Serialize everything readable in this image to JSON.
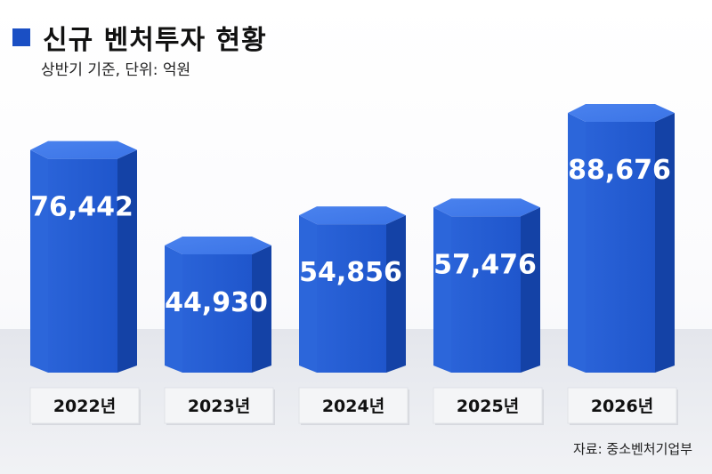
{
  "title": "신규 벤처투자 현황",
  "subtitle": "상반기 기준, 단위: 억원",
  "source": "자료: 중소벤처기업부",
  "colors": {
    "title_square": "#1a4fc4",
    "bar_front": "#1f56cc",
    "bar_side": "#1442a6",
    "bar_top": "#3b74e6",
    "label_box": "#f4f5f7"
  },
  "chart_data": {
    "type": "bar",
    "title": "신규 벤처투자 현황",
    "subtitle": "상반기 기준, 단위: 억원",
    "categories": [
      "2022년",
      "2023년",
      "2024년",
      "2025년",
      "2026년"
    ],
    "values": [
      76442,
      44930,
      54856,
      57476,
      88676
    ],
    "value_labels": [
      "76,442",
      "44,930",
      "54,856",
      "57,476",
      "88,676"
    ],
    "xlabel": "",
    "ylabel": "",
    "grid": false,
    "legend": "none"
  }
}
